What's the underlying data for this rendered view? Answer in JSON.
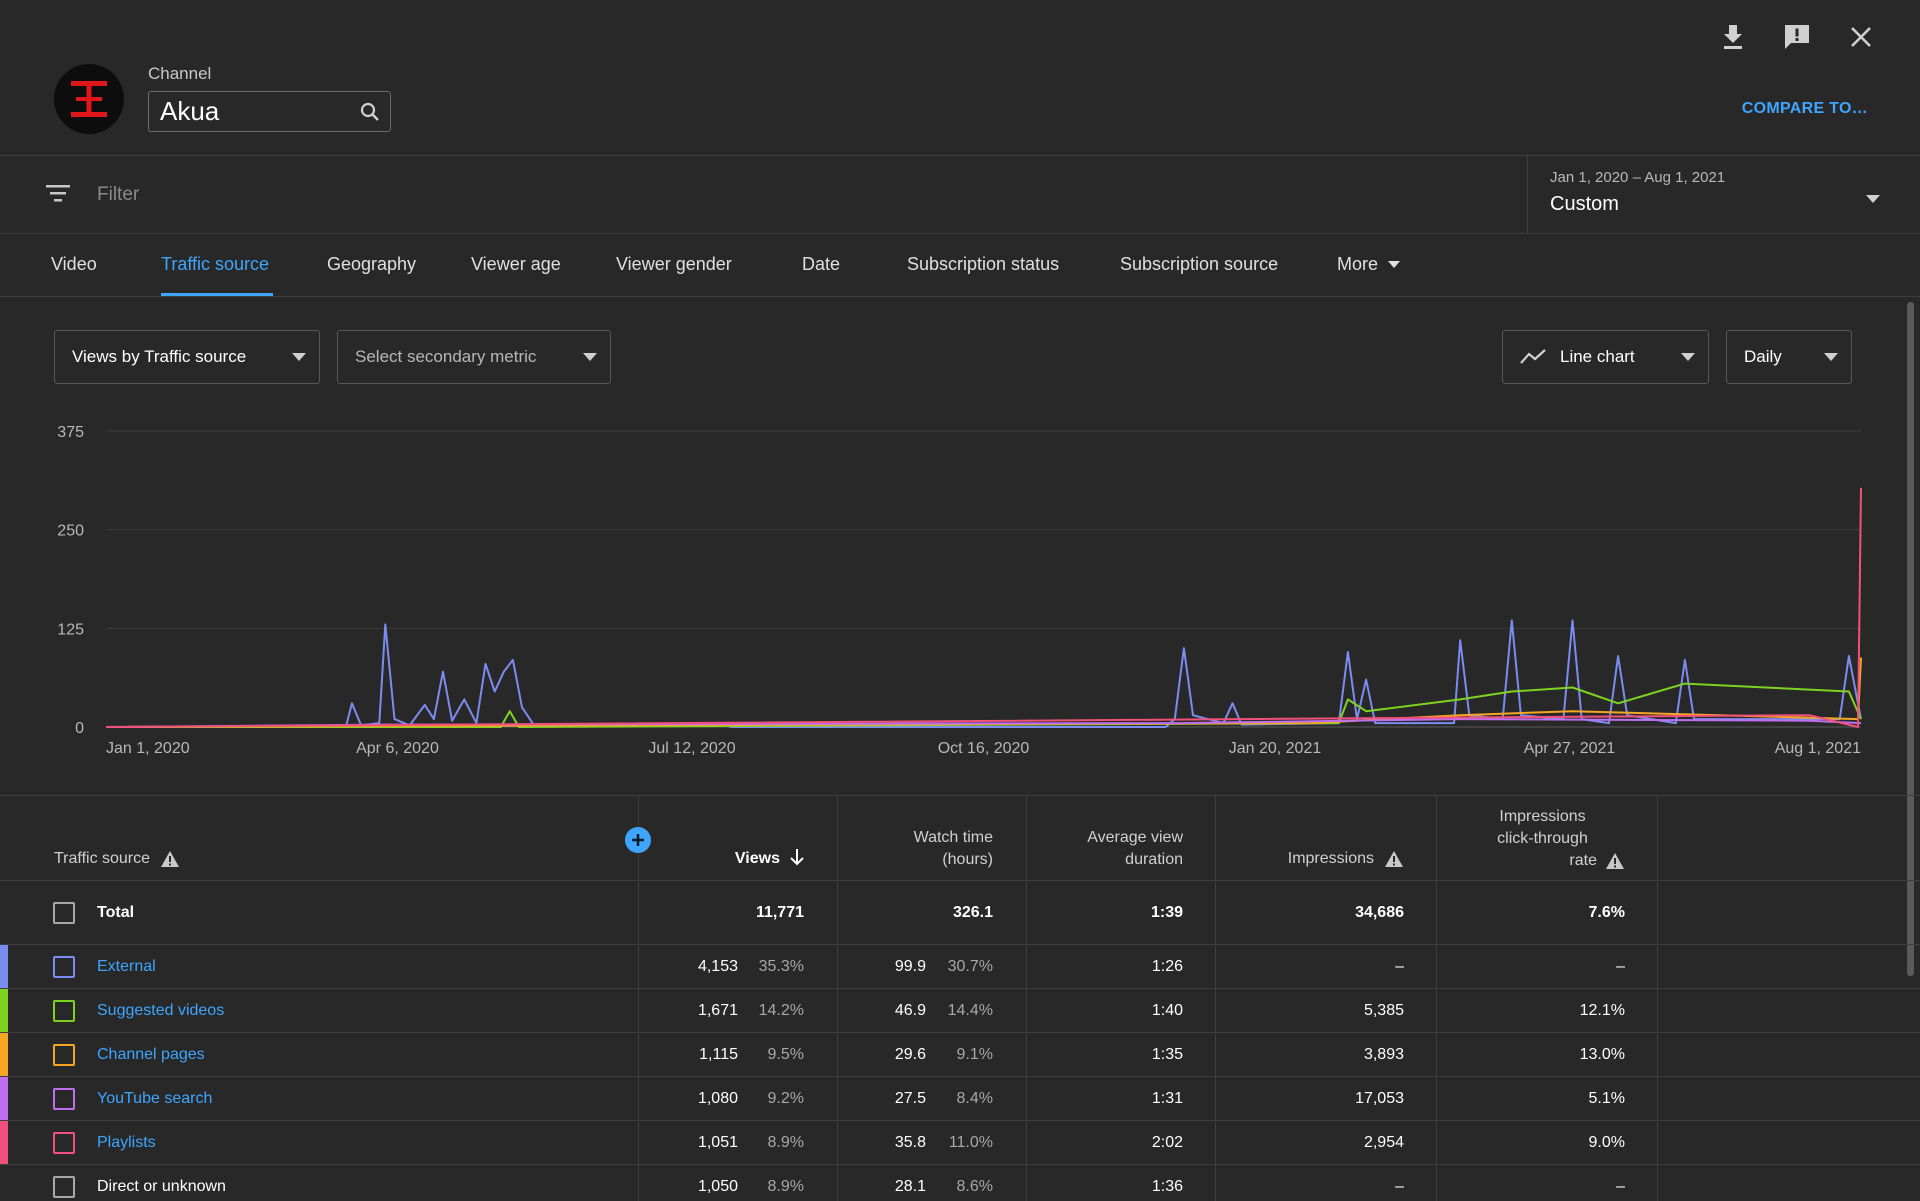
{
  "header": {
    "channel_label": "Channel",
    "channel_name": "Akua",
    "compare_label": "COMPARE TO…",
    "actions": [
      "download-icon",
      "feedback-icon",
      "close-icon"
    ]
  },
  "filter": {
    "placeholder": "Filter",
    "date_range": "Jan 1, 2020 – Aug 1, 2021",
    "date_preset": "Custom"
  },
  "tabs": [
    {
      "label": "Video",
      "active": false
    },
    {
      "label": "Traffic source",
      "active": true
    },
    {
      "label": "Geography",
      "active": false
    },
    {
      "label": "Viewer age",
      "active": false
    },
    {
      "label": "Viewer gender",
      "active": false
    },
    {
      "label": "Date",
      "active": false
    },
    {
      "label": "Subscription status",
      "active": false
    },
    {
      "label": "Subscription source",
      "active": false
    },
    {
      "label": "More",
      "active": false
    }
  ],
  "controls": {
    "primary_metric": "Views by Traffic source",
    "secondary_metric": "Select secondary metric",
    "chart_type": "Line chart",
    "interval": "Daily"
  },
  "chart_data": {
    "type": "line",
    "y_ticks": [
      "375",
      "250",
      "125",
      "0"
    ],
    "ylim": [
      0,
      375
    ],
    "x_ticks": [
      "Jan 1, 2020",
      "Apr 6, 2020",
      "Jul 12, 2020",
      "Oct 16, 2020",
      "Jan 20, 2021",
      "Apr 27, 2021",
      "Aug 1, 2021"
    ],
    "grid": true,
    "series": [
      {
        "name": "External",
        "color": "#7b8cf0",
        "points": [
          [
            "Jan 1, 2020",
            0
          ],
          [
            "Mar 20, 2020",
            0
          ],
          [
            "Mar 22, 2020",
            30
          ],
          [
            "Mar 25, 2020",
            2
          ],
          [
            "Mar 31, 2020",
            5
          ],
          [
            "Apr 2, 2020",
            130
          ],
          [
            "Apr 5, 2020",
            10
          ],
          [
            "Apr 10, 2020",
            2
          ],
          [
            "Apr 15, 2020",
            28
          ],
          [
            "Apr 18, 2020",
            10
          ],
          [
            "Apr 21, 2020",
            70
          ],
          [
            "Apr 24, 2020",
            8
          ],
          [
            "Apr 28, 2020",
            35
          ],
          [
            "May 2, 2020",
            5
          ],
          [
            "May 5, 2020",
            80
          ],
          [
            "May 8, 2020",
            45
          ],
          [
            "May 11, 2020",
            70
          ],
          [
            "May 14, 2020",
            85
          ],
          [
            "May 17, 2020",
            25
          ],
          [
            "May 21, 2020",
            2
          ],
          [
            "Jun 1, 2020",
            1
          ],
          [
            "Jul 20, 2020",
            5
          ],
          [
            "Jul 25, 2020",
            0
          ],
          [
            "Dec 15, 2020",
            0
          ],
          [
            "Dec 18, 2020",
            10
          ],
          [
            "Dec 21, 2020",
            100
          ],
          [
            "Dec 24, 2020",
            15
          ],
          [
            "Jan 3, 2021",
            5
          ],
          [
            "Jan 6, 2021",
            30
          ],
          [
            "Jan 9, 2021",
            3
          ],
          [
            "Feb 10, 2021",
            5
          ],
          [
            "Feb 13, 2021",
            95
          ],
          [
            "Feb 16, 2021",
            10
          ],
          [
            "Feb 19, 2021",
            60
          ],
          [
            "Feb 22, 2021",
            5
          ],
          [
            "Mar 20, 2021",
            5
          ],
          [
            "Mar 22, 2021",
            110
          ],
          [
            "Mar 25, 2021",
            15
          ],
          [
            "Apr 5, 2021",
            10
          ],
          [
            "Apr 8, 2021",
            135
          ],
          [
            "Apr 11, 2021",
            15
          ],
          [
            "Apr 25, 2021",
            10
          ],
          [
            "Apr 28, 2021",
            135
          ],
          [
            "May 1, 2021",
            10
          ],
          [
            "May 10, 2021",
            5
          ],
          [
            "May 13, 2021",
            90
          ],
          [
            "May 16, 2021",
            15
          ],
          [
            "Jun 1, 2021",
            5
          ],
          [
            "Jun 4, 2021",
            85
          ],
          [
            "Jun 7, 2021",
            10
          ],
          [
            "Jul 25, 2021",
            10
          ],
          [
            "Jul 28, 2021",
            90
          ],
          [
            "Aug 1, 2021",
            10
          ]
        ]
      },
      {
        "name": "Suggested videos",
        "color": "#7ed321",
        "points": [
          [
            "Jan 1, 2020",
            0
          ],
          [
            "May 10, 2020",
            0
          ],
          [
            "May 13, 2020",
            20
          ],
          [
            "May 16, 2020",
            0
          ],
          [
            "Feb 10, 2021",
            5
          ],
          [
            "Feb 13, 2021",
            35
          ],
          [
            "Feb 19, 2021",
            20
          ],
          [
            "Mar 22, 2021",
            35
          ],
          [
            "Apr 8, 2021",
            45
          ],
          [
            "Apr 28, 2021",
            50
          ],
          [
            "May 13, 2021",
            30
          ],
          [
            "Jun 4, 2021",
            55
          ],
          [
            "Jul 28, 2021",
            45
          ],
          [
            "Aug 1, 2021",
            10
          ]
        ]
      },
      {
        "name": "Channel pages",
        "color": "#f5a623",
        "points": [
          [
            "Jan 1, 2020",
            0
          ],
          [
            "Feb 1, 2021",
            5
          ],
          [
            "Mar 22, 2021",
            15
          ],
          [
            "Apr 28, 2021",
            20
          ],
          [
            "Jul 31, 2021",
            10
          ],
          [
            "Aug 1, 2021",
            88
          ]
        ]
      },
      {
        "name": "YouTube search",
        "color": "#bd6ff0",
        "points": [
          [
            "Jan 1, 2020",
            0
          ],
          [
            "Apr 1, 2020",
            3
          ],
          [
            "Dec 20, 2020",
            5
          ],
          [
            "Mar 22, 2021",
            10
          ],
          [
            "Jul 15, 2021",
            8
          ],
          [
            "Aug 1, 2021",
            5
          ]
        ]
      },
      {
        "name": "Playlists",
        "color": "#f0507a",
        "points": [
          [
            "Jan 1, 2020",
            0
          ],
          [
            "Jul 15, 2021",
            15
          ],
          [
            "Jul 31, 2021",
            0
          ],
          [
            "Aug 1, 2021",
            303
          ]
        ]
      }
    ]
  },
  "table": {
    "headers": {
      "source": "Traffic source",
      "views": "Views",
      "watch_time": [
        "Watch time",
        "(hours)"
      ],
      "avg_duration": [
        "Average view",
        "duration"
      ],
      "impressions": "Impressions",
      "ctr": [
        "Impressions",
        "click-through",
        "rate"
      ]
    },
    "total": {
      "label": "Total",
      "views": "11,771",
      "watch": "326.1",
      "avg": "1:39",
      "impressions": "34,686",
      "ctr": "7.6%"
    },
    "rows": [
      {
        "source": "External",
        "color": "#7b8cf0",
        "link": true,
        "views": "4,153",
        "views_pct": "35.3%",
        "watch": "99.9",
        "watch_pct": "30.7%",
        "avg": "1:26",
        "impressions": "–",
        "ctr": "–"
      },
      {
        "source": "Suggested videos",
        "color": "#7ed321",
        "link": true,
        "views": "1,671",
        "views_pct": "14.2%",
        "watch": "46.9",
        "watch_pct": "14.4%",
        "avg": "1:40",
        "impressions": "5,385",
        "ctr": "12.1%"
      },
      {
        "source": "Channel pages",
        "color": "#f5a623",
        "link": true,
        "views": "1,115",
        "views_pct": "9.5%",
        "watch": "29.6",
        "watch_pct": "9.1%",
        "avg": "1:35",
        "impressions": "3,893",
        "ctr": "13.0%"
      },
      {
        "source": "YouTube search",
        "color": "#bd6ff0",
        "link": true,
        "views": "1,080",
        "views_pct": "9.2%",
        "watch": "27.5",
        "watch_pct": "8.4%",
        "avg": "1:31",
        "impressions": "17,053",
        "ctr": "5.1%"
      },
      {
        "source": "Playlists",
        "color": "#f0507a",
        "link": true,
        "views": "1,051",
        "views_pct": "8.9%",
        "watch": "35.8",
        "watch_pct": "11.0%",
        "avg": "2:02",
        "impressions": "2,954",
        "ctr": "9.0%"
      },
      {
        "source": "Direct or unknown",
        "color": "#a8a8a8",
        "link": false,
        "views": "1,050",
        "views_pct": "8.9%",
        "watch": "28.1",
        "watch_pct": "8.6%",
        "avg": "1:36",
        "impressions": "–",
        "ctr": "–"
      }
    ]
  }
}
